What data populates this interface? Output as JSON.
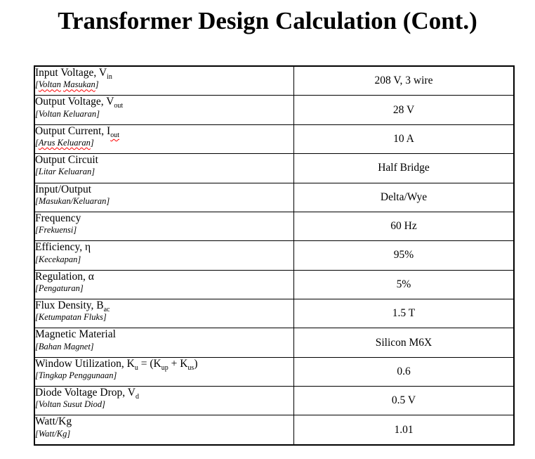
{
  "title": "Transformer Design Calculation (Cont.)",
  "colors": {
    "text": "#000000",
    "border": "#000000",
    "background": "#ffffff",
    "squiggle": "#ff0000"
  },
  "table": {
    "rows": [
      {
        "label": [
          {
            "t": "Input Voltage, V"
          },
          {
            "t": "in",
            "sub": true
          }
        ],
        "translation": [
          {
            "t": "["
          },
          {
            "t": "Voltan",
            "squiggle": true
          },
          {
            "t": " "
          },
          {
            "t": "Masukan",
            "squiggle": true
          },
          {
            "t": "]"
          }
        ],
        "value": "208 V, 3 wire"
      },
      {
        "label": [
          {
            "t": "Output Voltage, V"
          },
          {
            "t": "out",
            "sub": true
          }
        ],
        "translation": [
          {
            "t": "[Voltan Keluaran]"
          }
        ],
        "value": "28 V"
      },
      {
        "label": [
          {
            "t": "Output Current, I"
          },
          {
            "t": "out",
            "sub": true,
            "squiggle": true
          }
        ],
        "translation": [
          {
            "t": "["
          },
          {
            "t": "Arus Keluaran",
            "squiggle": true
          },
          {
            "t": "]"
          }
        ],
        "value": "10 A"
      },
      {
        "label": [
          {
            "t": "Output Circuit"
          }
        ],
        "translation": [
          {
            "t": "[Litar Keluaran]"
          }
        ],
        "value": "Half Bridge"
      },
      {
        "label": [
          {
            "t": "Input/Output"
          }
        ],
        "translation": [
          {
            "t": "[Masukan/Keluaran]"
          }
        ],
        "value": "Delta/Wye"
      },
      {
        "label": [
          {
            "t": "Frequency"
          }
        ],
        "translation": [
          {
            "t": "[Frekuensi]"
          }
        ],
        "value": "60 Hz"
      },
      {
        "label": [
          {
            "t": "Efficiency, η"
          }
        ],
        "translation": [
          {
            "t": "[Kecekapan]"
          }
        ],
        "value": "95%"
      },
      {
        "label": [
          {
            "t": "Regulation, α"
          }
        ],
        "translation": [
          {
            "t": "[Pengaturan]"
          }
        ],
        "value": "5%"
      },
      {
        "label": [
          {
            "t": "Flux Density, B"
          },
          {
            "t": "ac",
            "sub": true
          }
        ],
        "translation": [
          {
            "t": "[Ketumpatan Fluks]"
          }
        ],
        "value": "1.5 T"
      },
      {
        "label": [
          {
            "t": "Magnetic Material"
          }
        ],
        "translation": [
          {
            "t": "[Bahan Magnet]"
          }
        ],
        "value": "Silicon M6X"
      },
      {
        "label": [
          {
            "t": "Window Utilization, K"
          },
          {
            "t": "u",
            "sub": true
          },
          {
            "t": " = (K"
          },
          {
            "t": "up",
            "sub": true
          },
          {
            "t": " + K"
          },
          {
            "t": "us",
            "sub": true
          },
          {
            "t": ")"
          }
        ],
        "translation": [
          {
            "t": "[Tingkap Penggunaan]"
          }
        ],
        "value": "0.6"
      },
      {
        "label": [
          {
            "t": "Diode Voltage Drop, V"
          },
          {
            "t": "d",
            "sub": true
          }
        ],
        "translation": [
          {
            "t": "[Voltan Susut Diod]"
          }
        ],
        "value": "0.5 V"
      },
      {
        "label": [
          {
            "t": "Watt/Kg"
          }
        ],
        "translation": [
          {
            "t": "[Watt/Kg]"
          }
        ],
        "value": "1.01"
      }
    ]
  }
}
